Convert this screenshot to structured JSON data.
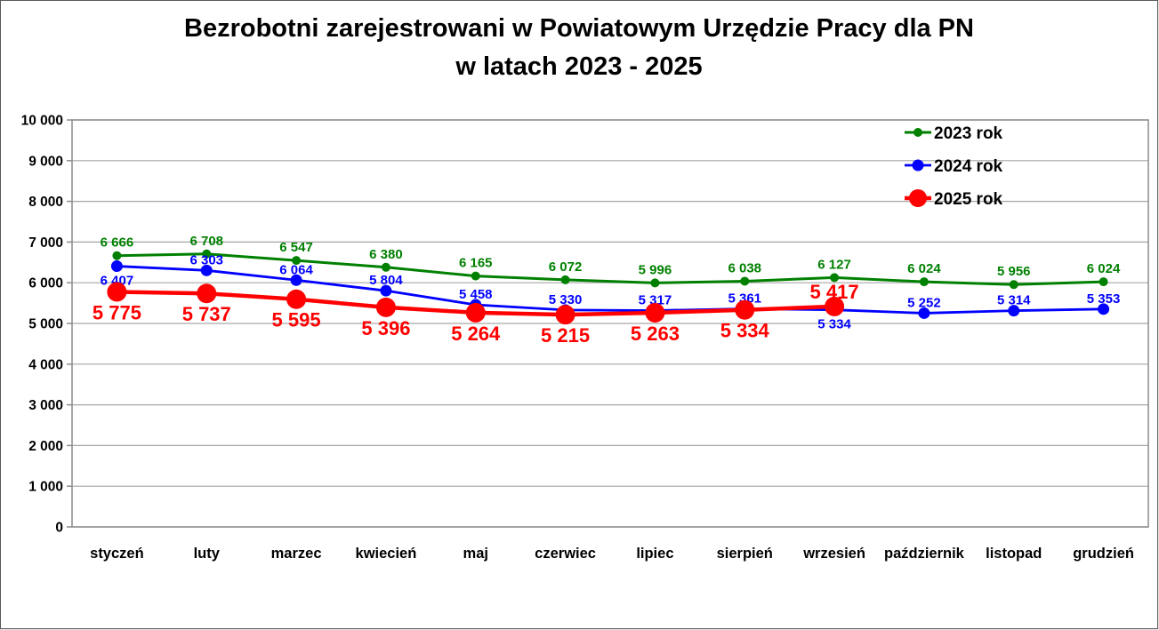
{
  "title": {
    "line1": "Bezrobotni zarejestrowani w Powiatowym Urzędzie Pracy dla PN",
    "line2": "w latach 2023 - 2025"
  },
  "chart_data": {
    "type": "line",
    "categories": [
      "styczeń",
      "luty",
      "marzec",
      "kwiecień",
      "maj",
      "czerwiec",
      "lipiec",
      "sierpień",
      "wrzesień",
      "październik",
      "listopad",
      "grudzień"
    ],
    "series": [
      {
        "name": "2023 rok",
        "color": "#008000",
        "values": [
          6666,
          6708,
          6547,
          6380,
          6165,
          6072,
          5996,
          6038,
          6127,
          6024,
          5956,
          6024
        ],
        "label_positions": [
          "above",
          "above",
          "above",
          "above",
          "above",
          "above",
          "above",
          "above",
          "above",
          "above",
          "above",
          "above"
        ]
      },
      {
        "name": "2024 rok",
        "color": "#0000ff",
        "values": [
          6407,
          6303,
          6064,
          5804,
          5458,
          5330,
          5317,
          5361,
          5334,
          5252,
          5314,
          5353
        ],
        "label_positions": [
          "below",
          "above",
          "above",
          "above",
          "above",
          "above",
          "above",
          "above",
          "below",
          "above",
          "above",
          "above"
        ]
      },
      {
        "name": "2025 rok",
        "color": "#ff0000",
        "values": [
          5775,
          5737,
          5595,
          5396,
          5264,
          5215,
          5263,
          5334,
          5417,
          null,
          null,
          null
        ],
        "label_positions": [
          "below",
          "below",
          "below",
          "below",
          "below",
          "below",
          "below",
          "below",
          "above",
          null,
          null,
          null
        ]
      }
    ],
    "title": "Bezrobotni zarejestrowani w Powiatowym Urzędzie Pracy dla PN w latach 2023 - 2025",
    "xlabel": "",
    "ylabel": "",
    "ylim": [
      0,
      10000
    ],
    "ytick_step": 1000,
    "ytick_labels": [
      "0",
      "1 000",
      "2 000",
      "3 000",
      "4 000",
      "5 000",
      "6 000",
      "7 000",
      "8 000",
      "9 000",
      "10 000"
    ],
    "grid": "horizontal",
    "legend_position": "top-right-inside",
    "number_format": "space-thousands"
  },
  "colors": {
    "grid": "#a6a6a6",
    "plot_border": "#8c8c8c",
    "background": "#ffffff",
    "outer_border": "#5a5a5a",
    "series_2023": "#008000",
    "series_2024": "#0000ff",
    "series_2025": "#ff0000"
  }
}
